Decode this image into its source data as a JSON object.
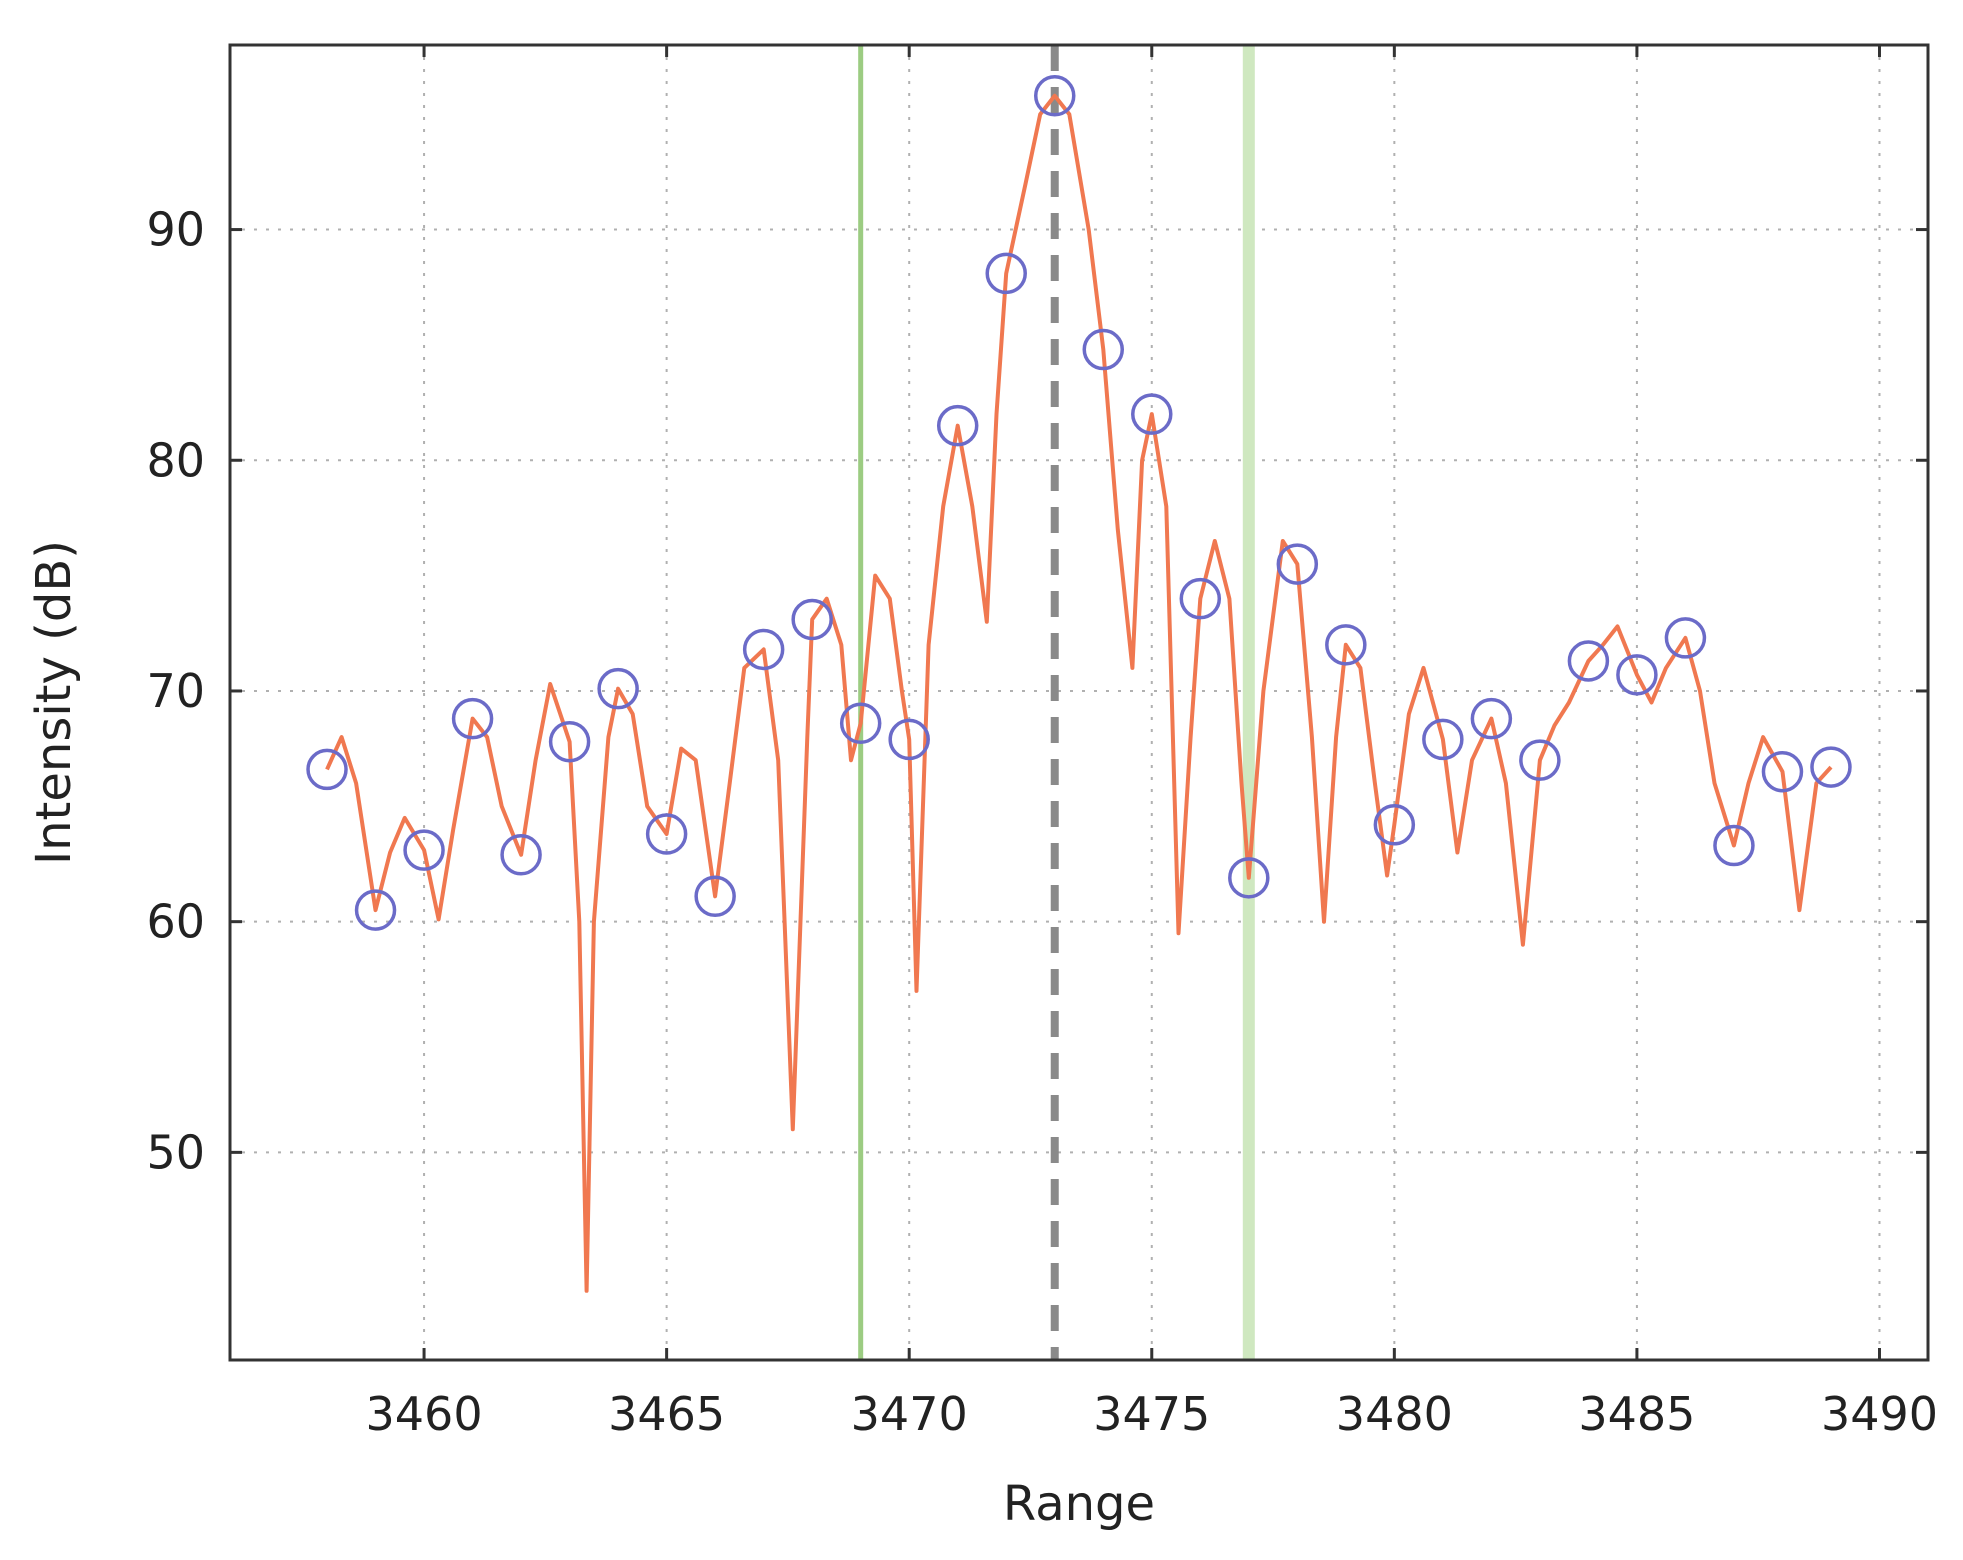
{
  "chart_data": {
    "type": "line",
    "title": "",
    "xlabel": "Range",
    "ylabel": "Intensity (dB)",
    "xlim": [
      3456,
      3491
    ],
    "ylim": [
      41,
      98
    ],
    "xticks": [
      3460,
      3465,
      3470,
      3475,
      3480,
      3485,
      3490
    ],
    "yticks": [
      50,
      60,
      70,
      80,
      90
    ],
    "grid": true,
    "series": [
      {
        "style": "line",
        "color": "#f07850",
        "points": [
          [
            3458.0,
            66.6
          ],
          [
            3458.3,
            68.0
          ],
          [
            3458.6,
            66.0
          ],
          [
            3459.0,
            60.5
          ],
          [
            3459.3,
            63.0
          ],
          [
            3459.6,
            64.5
          ],
          [
            3460.0,
            63.1
          ],
          [
            3460.3,
            60.1
          ],
          [
            3460.6,
            64.0
          ],
          [
            3461.0,
            68.8
          ],
          [
            3461.3,
            68.0
          ],
          [
            3461.6,
            65.0
          ],
          [
            3462.0,
            62.9
          ],
          [
            3462.3,
            67.0
          ],
          [
            3462.6,
            70.3
          ],
          [
            3463.0,
            67.8
          ],
          [
            3463.2,
            60.0
          ],
          [
            3463.35,
            44.0
          ],
          [
            3463.5,
            60.0
          ],
          [
            3463.8,
            68.0
          ],
          [
            3464.0,
            70.1
          ],
          [
            3464.3,
            69.0
          ],
          [
            3464.6,
            65.0
          ],
          [
            3465.0,
            63.8
          ],
          [
            3465.3,
            67.5
          ],
          [
            3465.6,
            67.0
          ],
          [
            3466.0,
            61.1
          ],
          [
            3466.3,
            66.0
          ],
          [
            3466.6,
            71.0
          ],
          [
            3467.0,
            71.8
          ],
          [
            3467.3,
            67.0
          ],
          [
            3467.6,
            51.0
          ],
          [
            3467.9,
            68.0
          ],
          [
            3468.0,
            73.1
          ],
          [
            3468.3,
            74.0
          ],
          [
            3468.6,
            72.0
          ],
          [
            3468.8,
            67.0
          ],
          [
            3469.0,
            68.6
          ],
          [
            3469.3,
            75.0
          ],
          [
            3469.6,
            74.0
          ],
          [
            3469.85,
            70.0
          ],
          [
            3470.0,
            67.9
          ],
          [
            3470.15,
            57.0
          ],
          [
            3470.4,
            72.0
          ],
          [
            3470.7,
            78.0
          ],
          [
            3471.0,
            81.5
          ],
          [
            3471.3,
            78.0
          ],
          [
            3471.6,
            73.0
          ],
          [
            3471.8,
            82.0
          ],
          [
            3472.0,
            88.1
          ],
          [
            3472.4,
            92.0
          ],
          [
            3472.7,
            95.0
          ],
          [
            3473.0,
            95.8
          ],
          [
            3473.3,
            95.0
          ],
          [
            3473.7,
            90.0
          ],
          [
            3474.0,
            84.8
          ],
          [
            3474.3,
            77.0
          ],
          [
            3474.6,
            71.0
          ],
          [
            3474.8,
            80.0
          ],
          [
            3475.0,
            82.0
          ],
          [
            3475.3,
            78.0
          ],
          [
            3475.55,
            59.5
          ],
          [
            3475.8,
            68.0
          ],
          [
            3476.0,
            74.0
          ],
          [
            3476.3,
            76.5
          ],
          [
            3476.6,
            74.0
          ],
          [
            3476.85,
            66.0
          ],
          [
            3477.0,
            61.9
          ],
          [
            3477.3,
            70.0
          ],
          [
            3477.7,
            76.5
          ],
          [
            3478.0,
            75.5
          ],
          [
            3478.3,
            68.0
          ],
          [
            3478.55,
            60.0
          ],
          [
            3478.8,
            68.0
          ],
          [
            3479.0,
            72.0
          ],
          [
            3479.3,
            71.0
          ],
          [
            3479.6,
            66.0
          ],
          [
            3479.85,
            62.0
          ],
          [
            3480.0,
            64.2
          ],
          [
            3480.3,
            69.0
          ],
          [
            3480.6,
            71.0
          ],
          [
            3481.0,
            67.9
          ],
          [
            3481.3,
            63.0
          ],
          [
            3481.6,
            67.0
          ],
          [
            3482.0,
            68.8
          ],
          [
            3482.3,
            66.0
          ],
          [
            3482.65,
            59.0
          ],
          [
            3483.0,
            67.0
          ],
          [
            3483.3,
            68.5
          ],
          [
            3483.6,
            69.5
          ],
          [
            3484.0,
            71.3
          ],
          [
            3484.3,
            72.0
          ],
          [
            3484.6,
            72.8
          ],
          [
            3485.0,
            70.7
          ],
          [
            3485.3,
            69.5
          ],
          [
            3485.6,
            71.0
          ],
          [
            3486.0,
            72.3
          ],
          [
            3486.3,
            70.0
          ],
          [
            3486.6,
            66.0
          ],
          [
            3487.0,
            63.3
          ],
          [
            3487.3,
            66.0
          ],
          [
            3487.6,
            68.0
          ],
          [
            3488.0,
            66.5
          ],
          [
            3488.35,
            60.5
          ],
          [
            3488.7,
            66.0
          ],
          [
            3489.0,
            66.7
          ]
        ]
      },
      {
        "style": "markers",
        "color": "#6b6bc8",
        "points": [
          [
            3458,
            66.6
          ],
          [
            3459,
            60.5
          ],
          [
            3460,
            63.1
          ],
          [
            3461,
            68.8
          ],
          [
            3462,
            62.9
          ],
          [
            3463,
            67.8
          ],
          [
            3464,
            70.1
          ],
          [
            3465,
            63.8
          ],
          [
            3466,
            61.1
          ],
          [
            3467,
            71.8
          ],
          [
            3468,
            73.1
          ],
          [
            3469,
            68.6
          ],
          [
            3470,
            67.9
          ],
          [
            3471,
            81.5
          ],
          [
            3472,
            88.1
          ],
          [
            3473,
            95.8
          ],
          [
            3474,
            84.8
          ],
          [
            3475,
            82.0
          ],
          [
            3476,
            74.0
          ],
          [
            3477,
            61.9
          ],
          [
            3478,
            75.5
          ],
          [
            3479,
            72.0
          ],
          [
            3480,
            64.2
          ],
          [
            3481,
            67.9
          ],
          [
            3482,
            68.8
          ],
          [
            3483,
            67.0
          ],
          [
            3484,
            71.3
          ],
          [
            3485,
            70.7
          ],
          [
            3486,
            72.3
          ],
          [
            3487,
            63.3
          ],
          [
            3488,
            66.5
          ],
          [
            3489,
            66.7
          ]
        ]
      }
    ],
    "vlines": [
      {
        "x": 3469,
        "color": "#9ccc82",
        "style": "solid"
      },
      {
        "x": 3473,
        "color": "#8a8a8a",
        "style": "dashed"
      },
      {
        "x": 3477,
        "color": "#cfe8c0",
        "style": "solid"
      }
    ]
  }
}
